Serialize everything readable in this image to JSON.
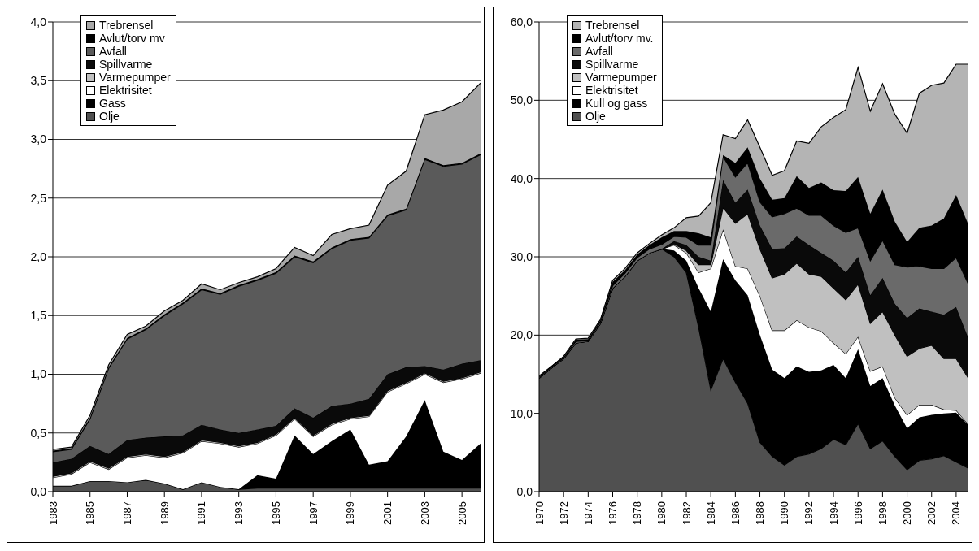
{
  "chart_data": [
    {
      "type": "area",
      "stacked": true,
      "x": [
        1983,
        1984,
        1985,
        1986,
        1987,
        1988,
        1989,
        1990,
        1991,
        1992,
        1993,
        1994,
        1995,
        1996,
        1997,
        1998,
        1999,
        2000,
        2001,
        2002,
        2003,
        2004,
        2005,
        2006
      ],
      "xlim": [
        1983,
        2006
      ],
      "xticks": [
        1983,
        1985,
        1987,
        1989,
        1991,
        1993,
        1995,
        1997,
        1999,
        2001,
        2003,
        2005
      ],
      "ylim": [
        0,
        4
      ],
      "yticks": [
        {
          "value": 0,
          "label": "0,0"
        },
        {
          "value": 0.5,
          "label": "0,5"
        },
        {
          "value": 1,
          "label": "1,0"
        },
        {
          "value": 1.5,
          "label": "1,5"
        },
        {
          "value": 2,
          "label": "2,0"
        },
        {
          "value": 2.5,
          "label": "2,5"
        },
        {
          "value": 3,
          "label": "3,0"
        },
        {
          "value": 3.5,
          "label": "3,5"
        },
        {
          "value": 4,
          "label": "4,0"
        }
      ],
      "grid": "y",
      "legend": "top left",
      "series": [
        {
          "name": "Olje",
          "color": "#505050",
          "values": [
            0.05,
            0.05,
            0.09,
            0.09,
            0.08,
            0.1,
            0.07,
            0.02,
            0.08,
            0.04,
            0.02,
            0.03,
            0.03,
            0.03,
            0.03,
            0.03,
            0.03,
            0.03,
            0.03,
            0.03,
            0.03,
            0.03,
            0.03,
            0.03
          ]
        },
        {
          "name": "Gass",
          "color": "#000000",
          "values": [
            0,
            0,
            0,
            0,
            0,
            0,
            0,
            0,
            0,
            0,
            0,
            0.11,
            0.08,
            0.45,
            0.29,
            0.4,
            0.5,
            0.2,
            0.23,
            0.44,
            0.75,
            0.31,
            0.24,
            0.38
          ]
        },
        {
          "name": "Elektrisitet",
          "color": "#ffffff",
          "values": [
            0.07,
            0.1,
            0.16,
            0.1,
            0.21,
            0.21,
            0.22,
            0.31,
            0.35,
            0.37,
            0.36,
            0.27,
            0.37,
            0.14,
            0.15,
            0.14,
            0.09,
            0.41,
            0.59,
            0.45,
            0.22,
            0.59,
            0.69,
            0.6
          ]
        },
        {
          "name": "Varmepumper",
          "color": "#c0c0c0",
          "values": [
            0.01,
            0.01,
            0.01,
            0.01,
            0.01,
            0.01,
            0.01,
            0.01,
            0.01,
            0.01,
            0.01,
            0.01,
            0.01,
            0.01,
            0.01,
            0.01,
            0.01,
            0.01,
            0.01,
            0.01,
            0.01,
            0.01,
            0.01,
            0.01
          ]
        },
        {
          "name": "Spillvarme",
          "color": "#0a0a0a",
          "values": [
            0.12,
            0.12,
            0.13,
            0.12,
            0.14,
            0.14,
            0.17,
            0.14,
            0.13,
            0.11,
            0.11,
            0.11,
            0.07,
            0.08,
            0.15,
            0.15,
            0.12,
            0.14,
            0.14,
            0.13,
            0.06,
            0.1,
            0.12,
            0.1
          ]
        },
        {
          "name": "Avfall",
          "color": "#5a5a5a",
          "values": [
            0.09,
            0.08,
            0.23,
            0.73,
            0.86,
            0.92,
            1.03,
            1.12,
            1.15,
            1.15,
            1.25,
            1.27,
            1.3,
            1.29,
            1.32,
            1.34,
            1.39,
            1.37,
            1.35,
            1.34,
            1.76,
            1.73,
            1.7,
            1.75
          ]
        },
        {
          "name": "Avlut/torv mv",
          "color": "#000000",
          "values": [
            0.01,
            0.01,
            0.01,
            0.01,
            0.01,
            0.01,
            0.01,
            0.01,
            0.01,
            0.01,
            0.01,
            0.01,
            0.01,
            0.01,
            0.01,
            0.01,
            0.01,
            0.01,
            0.01,
            0.01,
            0.01,
            0.01,
            0.01,
            0.01
          ]
        },
        {
          "name": "Trebrensel",
          "color": "#a8a8a8",
          "values": [
            0.01,
            0.01,
            0.02,
            0.02,
            0.03,
            0.02,
            0.03,
            0.02,
            0.04,
            0.03,
            0.02,
            0.02,
            0.03,
            0.07,
            0.05,
            0.11,
            0.09,
            0.1,
            0.25,
            0.32,
            0.37,
            0.47,
            0.52,
            0.6
          ]
        }
      ]
    },
    {
      "type": "area",
      "stacked": true,
      "x": [
        1970,
        1971,
        1972,
        1973,
        1974,
        1975,
        1976,
        1977,
        1978,
        1979,
        1980,
        1981,
        1982,
        1983,
        1984,
        1985,
        1986,
        1987,
        1988,
        1989,
        1990,
        1991,
        1992,
        1993,
        1994,
        1995,
        1996,
        1997,
        1998,
        1999,
        2000,
        2001,
        2002,
        2003,
        2004,
        2005
      ],
      "xlim": [
        1970,
        2005
      ],
      "xticks": [
        1970,
        1972,
        1974,
        1976,
        1978,
        1980,
        1982,
        1984,
        1986,
        1988,
        1990,
        1992,
        1994,
        1996,
        1998,
        2000,
        2002,
        2004
      ],
      "ylim": [
        0,
        60
      ],
      "yticks": [
        {
          "value": 0,
          "label": "0,0"
        },
        {
          "value": 10,
          "label": "10,0"
        },
        {
          "value": 20,
          "label": "20,0"
        },
        {
          "value": 30,
          "label": "30,0"
        },
        {
          "value": 40,
          "label": "40,0"
        },
        {
          "value": 50,
          "label": "50,0"
        },
        {
          "value": 60,
          "label": "60,0"
        }
      ],
      "grid": "y",
      "legend": "top left",
      "series": [
        {
          "name": "Olje",
          "color": "#505050",
          "values": [
            14.5,
            15.8,
            17,
            19,
            19.2,
            21.5,
            26,
            27.5,
            29.5,
            30.5,
            31,
            30,
            28,
            21,
            13,
            17,
            14,
            11.3,
            6.3,
            4.5,
            3.4,
            4.5,
            4.8,
            5.5,
            6.7,
            6,
            8.7,
            5.5,
            6.5,
            4.5,
            2.8,
            4,
            4.2,
            4.6,
            3.8,
            3
          ]
        },
        {
          "name": "Kull og gass",
          "color": "#000000",
          "values": [
            0,
            0,
            0,
            0,
            0,
            0,
            0,
            0,
            0,
            0,
            0,
            0.8,
            1.5,
            5,
            10,
            12.7,
            13,
            13.8,
            13.7,
            11.1,
            11.1,
            11.5,
            10.5,
            10,
            9.5,
            8.5,
            9.5,
            8,
            8,
            6.5,
            5.3,
            5.5,
            5.6,
            5.4,
            6.3,
            5.5
          ]
        },
        {
          "name": "Elektrisitet",
          "color": "#ffffff",
          "values": [
            0,
            0,
            0,
            0,
            0,
            0,
            0,
            0,
            0,
            0,
            0,
            0.7,
            1,
            2,
            5.5,
            3.8,
            1.8,
            3.4,
            5,
            5,
            6.1,
            5.9,
            5.7,
            5,
            2.8,
            3.1,
            1.6,
            1.9,
            1.5,
            1,
            1.7,
            1.6,
            1.3,
            0.5,
            0.3,
            0.1
          ]
        },
        {
          "name": "Varmepumper",
          "color": "#c0c0c0",
          "values": [
            0,
            0,
            0,
            0,
            0,
            0,
            0,
            0,
            0,
            0,
            0,
            0.1,
            0.3,
            1,
            0.5,
            2.8,
            5.5,
            7,
            6,
            6.7,
            7.2,
            7.3,
            6.8,
            7,
            7,
            6.9,
            6.7,
            6.1,
            7,
            8,
            7.5,
            7.2,
            7.6,
            6.5,
            6.6,
            5.9
          ]
        },
        {
          "name": "Spillvarme",
          "color": "#0a0a0a",
          "values": [
            0,
            0,
            0,
            0,
            0,
            0,
            0,
            0,
            0,
            0,
            0,
            0.4,
            0.7,
            1,
            0.5,
            3.5,
            2.6,
            3.1,
            3,
            3.7,
            3.3,
            3.4,
            3.7,
            3,
            3.5,
            3.5,
            3.5,
            3.6,
            4.3,
            4,
            4.9,
            5.1,
            4.3,
            5.6,
            6.6,
            5.1
          ]
        },
        {
          "name": "Avfall",
          "color": "#6a6a6a",
          "values": [
            0.1,
            0.1,
            0.1,
            0.2,
            0.1,
            0.2,
            0.3,
            0.4,
            0.4,
            0.5,
            0.6,
            0.6,
            1,
            1.5,
            2,
            3,
            3.3,
            3.4,
            3,
            4.1,
            4.4,
            3.6,
            3.8,
            4.8,
            4.5,
            5.1,
            3.7,
            4.4,
            4.8,
            5,
            6.5,
            5.4,
            5.5,
            5.9,
            6.3,
            6.9
          ]
        },
        {
          "name": "Avlut/torv mv.",
          "color": "#000000",
          "values": [
            0.1,
            0.1,
            0.1,
            0.2,
            0.2,
            0.2,
            0.5,
            0.4,
            0.4,
            0.5,
            0.9,
            0.7,
            0.8,
            1.5,
            1,
            0.2,
            1.8,
            2,
            3,
            2.2,
            2,
            4.1,
            3.5,
            4.2,
            4.5,
            5.3,
            6.5,
            6,
            6.5,
            5.5,
            3.2,
            4.9,
            5.5,
            6.4,
            8,
            7.6
          ]
        },
        {
          "name": "Trebrensel",
          "color": "#b4b4b4",
          "values": [
            0.1,
            0,
            0.1,
            0.1,
            0.1,
            0.1,
            0.2,
            0.2,
            0.2,
            0.2,
            0.3,
            0.4,
            1.7,
            2.2,
            4.4,
            2.6,
            3.1,
            3.5,
            4,
            3.1,
            3.5,
            4.5,
            5.7,
            7.1,
            9.3,
            10.4,
            14,
            13.1,
            13.5,
            13.7,
            13.9,
            17.2,
            17.9,
            17.3,
            16.7,
            20.5
          ]
        }
      ]
    }
  ]
}
